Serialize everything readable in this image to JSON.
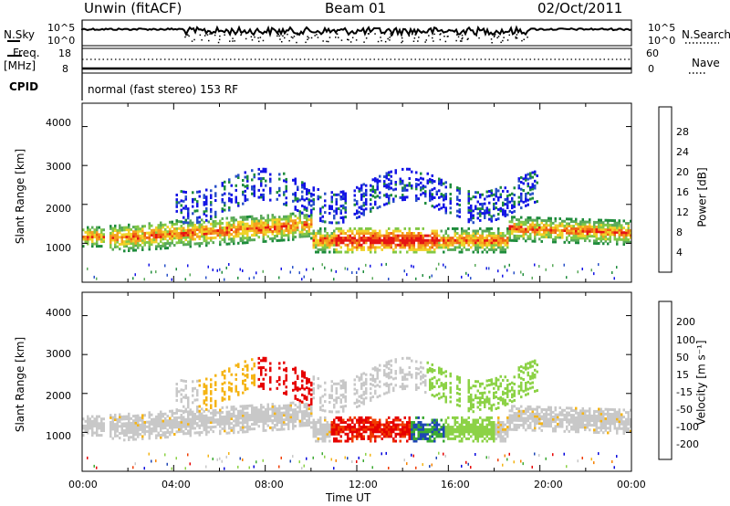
{
  "header": {
    "station": "Unwin (fitACF)",
    "beam": "Beam 01",
    "date": "02/Oct/2011"
  },
  "panels": {
    "nsky_label": "N.Sky",
    "nsky_ticks": [
      "10^5",
      "10^0"
    ],
    "nsearch_label": "N.Search",
    "nsearch_ticks": [
      "10^5",
      "10^0"
    ],
    "freq_label": "Freq.",
    "freq_unit": "[MHz]",
    "freq_ticks": [
      "18",
      "8"
    ],
    "nave_label": "Nave",
    "nave_ticks": [
      "60",
      "0"
    ],
    "cpid_label": "CPID",
    "cpid_text": "normal (fast stereo) 153 RF"
  },
  "colors": {
    "power": [
      "#1414e6",
      "#2850c8",
      "#1e8c3c",
      "#5aaa5a",
      "#82c846",
      "#f0d228",
      "#f5a01e",
      "#f06414",
      "#e61414"
    ],
    "velocity": [
      "#e60000",
      "#f03c00",
      "#f58200",
      "#f5b414",
      "#c8c8c8",
      "#8cd246",
      "#3caa32",
      "#1e46b4",
      "#0000dc"
    ]
  },
  "chart_data": [
    {
      "type": "heatmap",
      "name": "power",
      "ylabel": "Slant Range [km]",
      "yticks": [
        "1000",
        "2000",
        "3000",
        "4000"
      ],
      "ylim": [
        0,
        4600
      ],
      "colorbar_label": "Power [dB]",
      "colorbar_ticks": [
        "4",
        "8",
        "12",
        "16",
        "20",
        "24",
        "28"
      ],
      "x_range_hours": [
        0,
        24
      ]
    },
    {
      "type": "heatmap",
      "name": "velocity",
      "ylabel": "Slant Range [km]",
      "yticks": [
        "1000",
        "2000",
        "3000",
        "4000"
      ],
      "ylim": [
        0,
        4600
      ],
      "colorbar_label": "Velocity [m s⁻¹]",
      "colorbar_ticks": [
        "-200",
        "-100",
        "-50",
        "-15",
        "15",
        "50",
        "100",
        "200"
      ],
      "xticks": [
        "00:00",
        "04:00",
        "08:00",
        "12:00",
        "16:00",
        "20:00",
        "00:00"
      ],
      "xlabel": "Time UT",
      "x_range_hours": [
        0,
        24
      ]
    }
  ]
}
